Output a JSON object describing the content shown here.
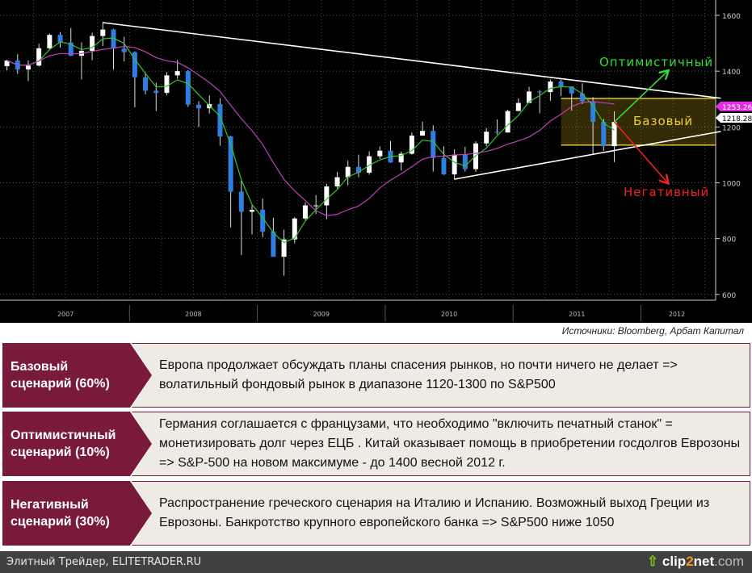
{
  "chart_data": {
    "type": "candlestick",
    "y_ticks": [
      600,
      800,
      1000,
      1200,
      1400,
      1600
    ],
    "ylim": [
      560,
      1650
    ],
    "x_ticks": [
      "2007",
      "2008",
      "2009",
      "2010",
      "2011",
      "2012"
    ],
    "xlim": [
      "2007-01",
      "2012-08"
    ],
    "grid": true,
    "ohlc": [
      [
        "2007-01",
        1418,
        1441,
        1403,
        1438
      ],
      [
        "2007-02",
        1438,
        1461,
        1390,
        1406
      ],
      [
        "2007-03",
        1406,
        1438,
        1364,
        1420
      ],
      [
        "2007-04",
        1420,
        1498,
        1416,
        1482
      ],
      [
        "2007-05",
        1482,
        1535,
        1476,
        1530
      ],
      [
        "2007-06",
        1530,
        1540,
        1484,
        1503
      ],
      [
        "2007-07",
        1503,
        1555,
        1454,
        1455
      ],
      [
        "2007-08",
        1455,
        1503,
        1370,
        1473
      ],
      [
        "2007-09",
        1473,
        1538,
        1439,
        1526
      ],
      [
        "2007-10",
        1526,
        1576,
        1490,
        1549
      ],
      [
        "2007-11",
        1549,
        1552,
        1406,
        1481
      ],
      [
        "2007-12",
        1481,
        1523,
        1435,
        1468
      ],
      [
        "2008-01",
        1468,
        1471,
        1270,
        1378
      ],
      [
        "2008-02",
        1378,
        1396,
        1317,
        1330
      ],
      [
        "2008-03",
        1330,
        1359,
        1257,
        1322
      ],
      [
        "2008-04",
        1322,
        1397,
        1314,
        1385
      ],
      [
        "2008-05",
        1385,
        1440,
        1373,
        1400
      ],
      [
        "2008-06",
        1400,
        1404,
        1272,
        1280
      ],
      [
        "2008-07",
        1280,
        1292,
        1200,
        1267
      ],
      [
        "2008-08",
        1267,
        1313,
        1248,
        1282
      ],
      [
        "2008-09",
        1282,
        1303,
        1133,
        1166
      ],
      [
        "2008-10",
        1166,
        1168,
        840,
        968
      ],
      [
        "2008-11",
        968,
        1007,
        741,
        896
      ],
      [
        "2008-12",
        896,
        919,
        815,
        903
      ],
      [
        "2009-01",
        903,
        943,
        805,
        825
      ],
      [
        "2009-02",
        825,
        875,
        735,
        735
      ],
      [
        "2009-03",
        735,
        832,
        667,
        797
      ],
      [
        "2009-04",
        797,
        877,
        783,
        872
      ],
      [
        "2009-05",
        872,
        930,
        866,
        919
      ],
      [
        "2009-06",
        919,
        956,
        888,
        919
      ],
      [
        "2009-07",
        919,
        996,
        869,
        987
      ],
      [
        "2009-08",
        987,
        1039,
        979,
        1020
      ],
      [
        "2009-09",
        1020,
        1080,
        991,
        1057
      ],
      [
        "2009-10",
        1057,
        1101,
        1020,
        1036
      ],
      [
        "2009-11",
        1036,
        1113,
        1029,
        1095
      ],
      [
        "2009-12",
        1095,
        1130,
        1085,
        1115
      ],
      [
        "2010-01",
        1115,
        1150,
        1071,
        1073
      ],
      [
        "2010-02",
        1073,
        1112,
        1044,
        1104
      ],
      [
        "2010-03",
        1104,
        1180,
        1101,
        1169
      ],
      [
        "2010-04",
        1169,
        1219,
        1170,
        1186
      ],
      [
        "2010-05",
        1186,
        1206,
        1040,
        1089
      ],
      [
        "2010-06",
        1089,
        1131,
        1028,
        1030
      ],
      [
        "2010-07",
        1030,
        1120,
        1011,
        1101
      ],
      [
        "2010-08",
        1101,
        1129,
        1040,
        1049
      ],
      [
        "2010-09",
        1049,
        1149,
        1039,
        1141
      ],
      [
        "2010-10",
        1141,
        1196,
        1131,
        1183
      ],
      [
        "2010-11",
        1183,
        1227,
        1173,
        1180
      ],
      [
        "2010-12",
        1180,
        1262,
        1187,
        1257
      ],
      [
        "2011-01",
        1257,
        1302,
        1257,
        1286
      ],
      [
        "2011-02",
        1286,
        1344,
        1289,
        1327
      ],
      [
        "2011-03",
        1327,
        1332,
        1249,
        1325
      ],
      [
        "2011-04",
        1325,
        1370,
        1294,
        1363
      ],
      [
        "2011-05",
        1363,
        1370,
        1311,
        1345
      ],
      [
        "2011-06",
        1345,
        1345,
        1258,
        1320
      ],
      [
        "2011-07",
        1320,
        1356,
        1282,
        1292
      ],
      [
        "2011-08",
        1292,
        1307,
        1101,
        1218
      ],
      [
        "2011-09",
        1218,
        1229,
        1114,
        1131
      ],
      [
        "2011-10",
        1131,
        1256,
        1074,
        1218
      ]
    ],
    "moving_averages": [
      {
        "color": "#2fc52f",
        "periods": 3
      },
      {
        "color": "#c23ec2",
        "periods": 10
      }
    ],
    "last_values": [
      {
        "label": "1253.26",
        "value": 1253.26,
        "color": "#e02ee0"
      },
      {
        "label": "1218.28",
        "value": 1218.28,
        "color": "#ffffff"
      }
    ],
    "trendlines": [
      {
        "color": "#ffffff",
        "from": [
          "2007-10",
          1574
        ],
        "to": [
          "2012-08",
          1303
        ]
      },
      {
        "color": "#ffffff",
        "from": [
          "2010-07",
          1013
        ],
        "to": [
          "2012-08",
          1184
        ]
      }
    ],
    "range_band": {
      "from": "2011-05",
      "to": "2012-08",
      "low": 1135,
      "high": 1302,
      "color": "#e6c619"
    },
    "scenarios": [
      {
        "label": "Оптимистичный",
        "color": "#33dd33",
        "from": [
          "2011-10",
          1218
        ],
        "to": [
          "2012-03",
          1400
        ]
      },
      {
        "label": "Базовый",
        "color": "#f1d12e"
      },
      {
        "label": "Негативный",
        "color": "#ee2222",
        "from": [
          "2011-10",
          1218
        ],
        "to": [
          "2012-03",
          1000
        ]
      }
    ]
  },
  "source": "Источники: Bloomberg, Арбат Капитал",
  "scenarios": [
    {
      "label": "Базовый\nсценарий (60%)",
      "text": "Европа продолжает обсуждать планы спасения рынков, но  почти ничего не делает => волатильный  фондовый рынок в диапазоне 1120-1300 по S&P500"
    },
    {
      "label": "Оптимистичный\nсценарий (10%)",
      "text": "Германия соглашается с французами, что необходимо \"включить печатный станок\" = монетизировать долг через ЕЦБ . Китай оказывает помощь в приобретении госдолгов Еврозоны => S&P-500 на новом максимуме - до 1400 весной 2012 г."
    },
    {
      "label": "Негативный\nсценарий (30%)",
      "text": "Распространение греческого сценария на Италию и Испанию. Возможный выход Греции из Еврозоны. Банкротство крупного европейского банка => S&P500  ниже 1050"
    }
  ],
  "footer": {
    "left": "Элитный Трейдер, ELITETRADER.RU",
    "logo_a": "clip",
    "logo_b": "2",
    "logo_c": "net",
    "logo_d": ".com"
  },
  "colors": {
    "maroon": "#7a1a3b",
    "panel": "#eeebe4",
    "chart_bg": "#000000"
  }
}
